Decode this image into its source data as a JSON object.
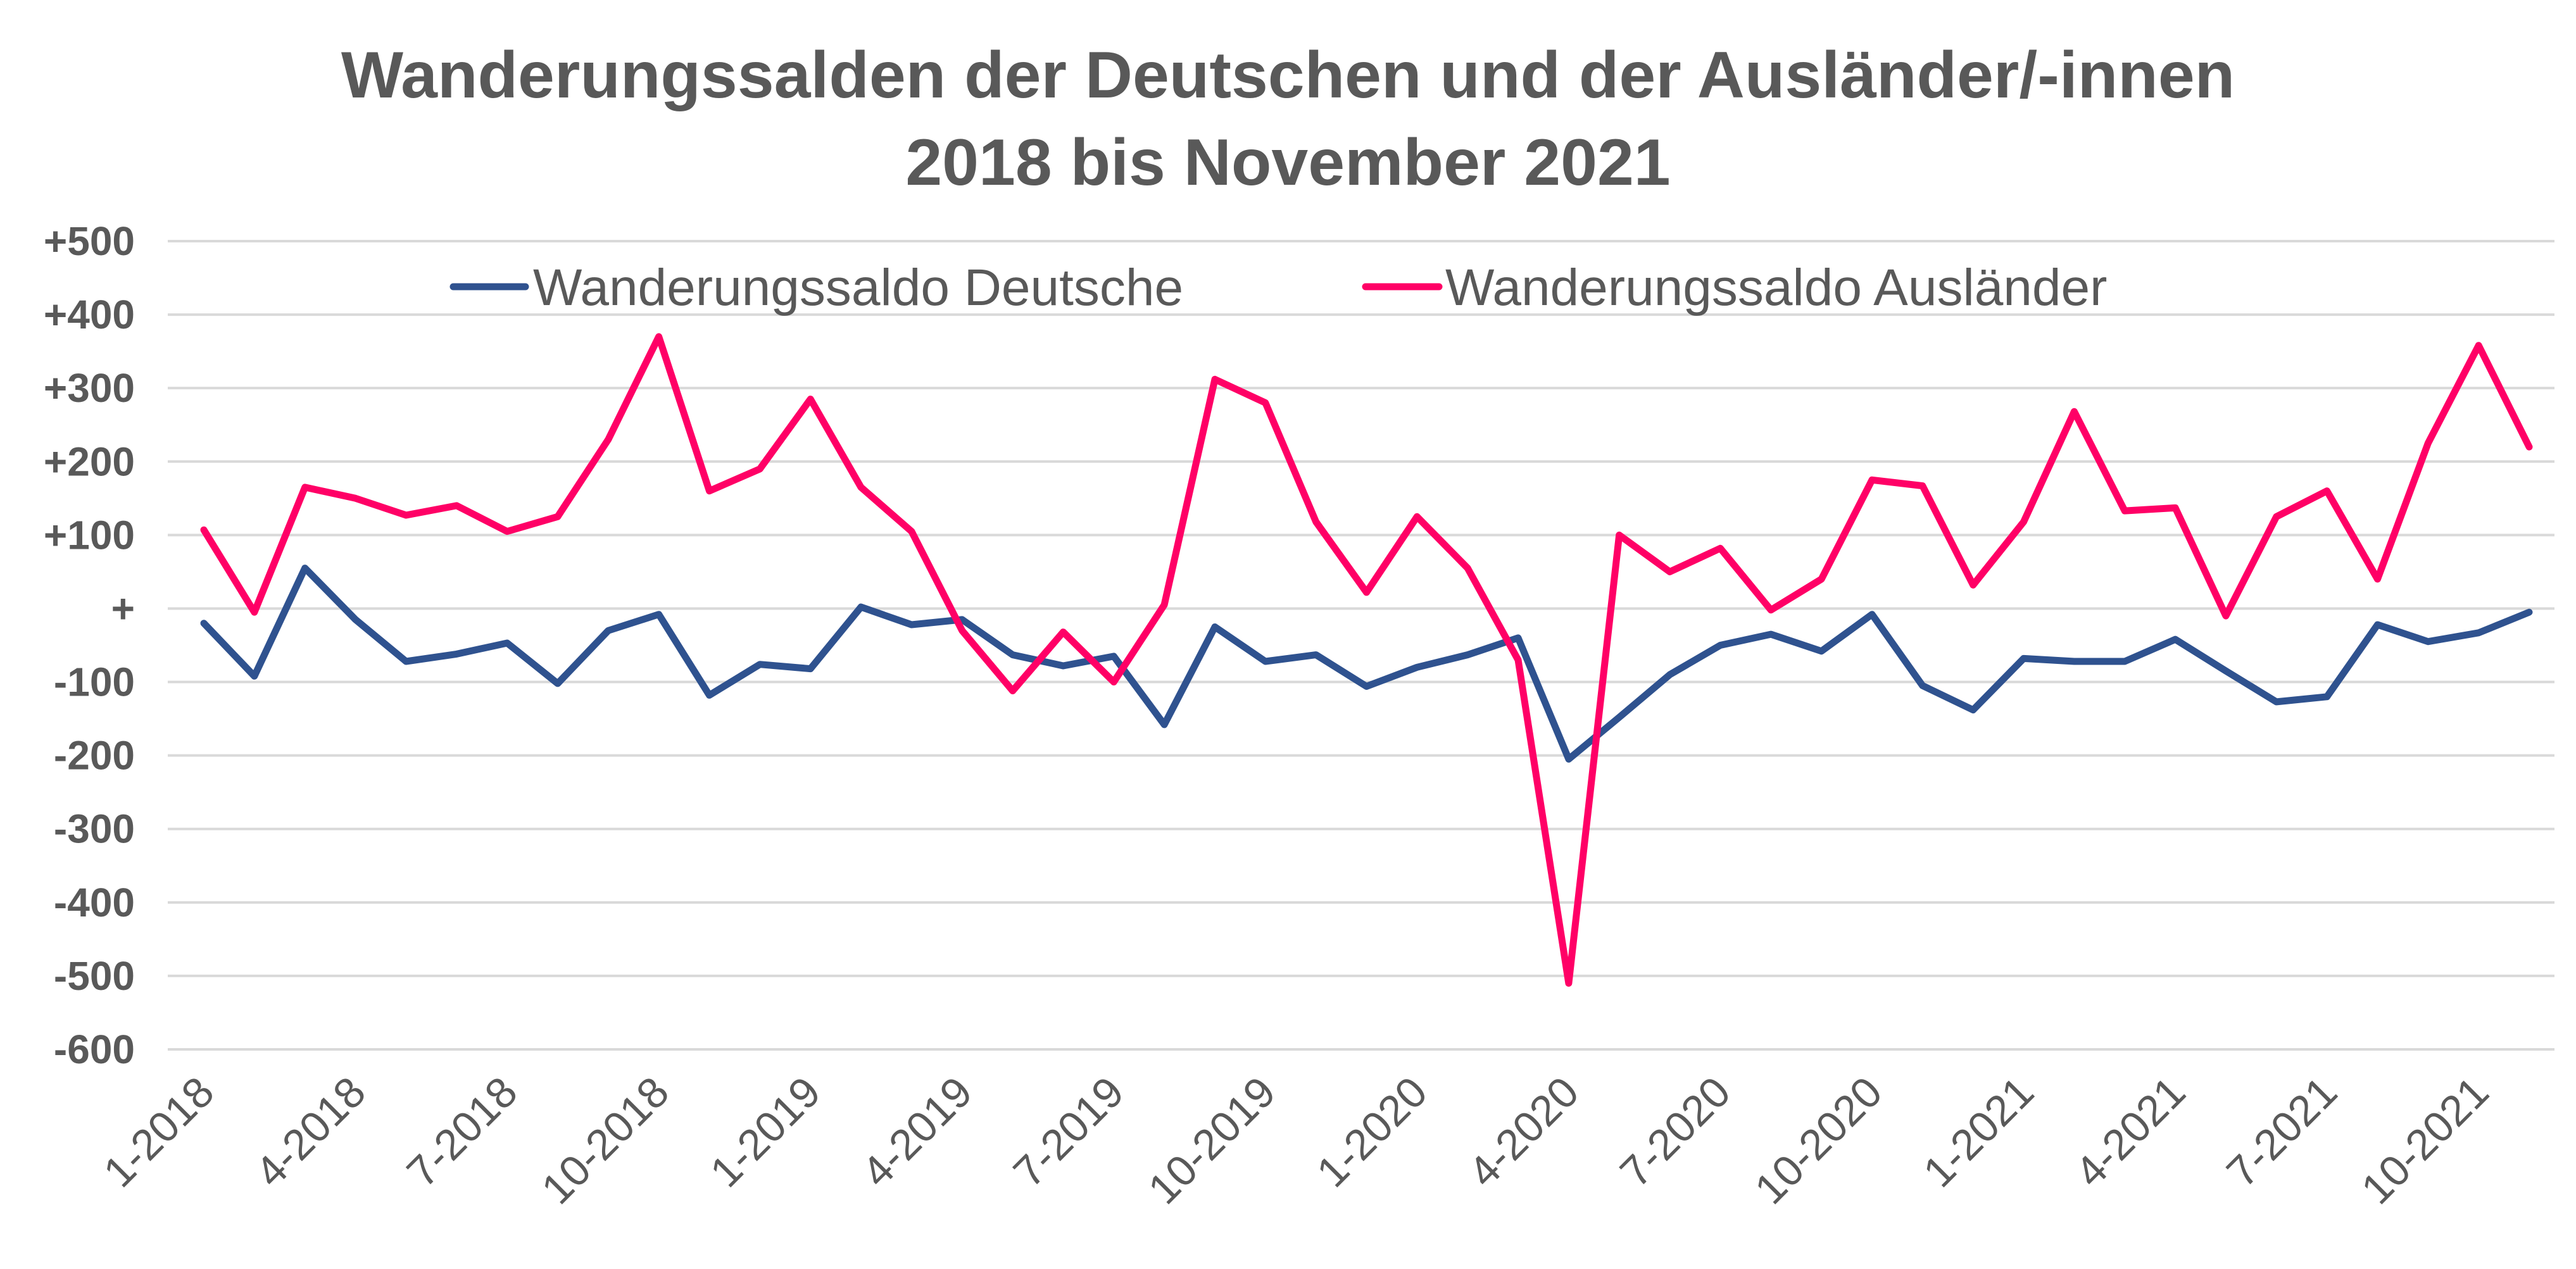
{
  "chart_data": {
    "type": "line",
    "title": "Wanderungssalden der Deutschen und der Ausländer/-innen",
    "subtitle": "2018 bis November 2021",
    "xlabel": "",
    "ylabel": "",
    "ylim": [
      -600,
      500
    ],
    "yticks": [
      500,
      400,
      300,
      200,
      100,
      0,
      -100,
      -200,
      -300,
      -400,
      -500,
      -600
    ],
    "ytick_labels": [
      "+500",
      "+400",
      "+300",
      "+200",
      "+100",
      "+",
      "-100",
      "-200",
      "-300",
      "-400",
      "-500",
      "-600"
    ],
    "grid": true,
    "legend_position": "top",
    "x": [
      "1-2018",
      "2-2018",
      "3-2018",
      "4-2018",
      "5-2018",
      "6-2018",
      "7-2018",
      "8-2018",
      "9-2018",
      "10-2018",
      "11-2018",
      "12-2018",
      "1-2019",
      "2-2019",
      "3-2019",
      "4-2019",
      "5-2019",
      "6-2019",
      "7-2019",
      "8-2019",
      "9-2019",
      "10-2019",
      "11-2019",
      "12-2019",
      "1-2020",
      "2-2020",
      "3-2020",
      "4-2020",
      "5-2020",
      "6-2020",
      "7-2020",
      "8-2020",
      "9-2020",
      "10-2020",
      "11-2020",
      "12-2020",
      "1-2021",
      "2-2021",
      "3-2021",
      "4-2021",
      "5-2021",
      "6-2021",
      "7-2021",
      "8-2021",
      "9-2021",
      "10-2021",
      "11-2021"
    ],
    "x_tick_labels": [
      "1-2018",
      "4-2018",
      "7-2018",
      "10-2018",
      "1-2019",
      "4-2019",
      "7-2019",
      "10-2019",
      "1-2020",
      "4-2020",
      "7-2020",
      "10-2020",
      "1-2021",
      "4-2021",
      "7-2021",
      "10-2021"
    ],
    "series": [
      {
        "name": "Wanderungssaldo Deutsche",
        "color": "#2F528F",
        "values": [
          -20,
          -92,
          55,
          -15,
          -72,
          -62,
          -47,
          -102,
          -30,
          -8,
          -118,
          -76,
          -82,
          2,
          -22,
          -15,
          -63,
          -78,
          -65,
          -158,
          -25,
          -72,
          -63,
          -106,
          -80,
          -63,
          -40,
          -205,
          -148,
          -90,
          -50,
          -35,
          -58,
          -8,
          -105,
          -138,
          -68,
          -72,
          -72,
          -42,
          -85,
          -127,
          -120,
          -22,
          -45,
          -33,
          -5
        ]
      },
      {
        "name": "Wanderungssaldo Ausländer",
        "color": "#FF0066",
        "values": [
          107,
          -5,
          165,
          150,
          127,
          140,
          105,
          125,
          230,
          370,
          160,
          190,
          285,
          165,
          105,
          -30,
          -112,
          -32,
          -100,
          5,
          312,
          280,
          118,
          22,
          125,
          55,
          -70,
          -510,
          100,
          50,
          82,
          -2,
          40,
          175,
          167,
          32,
          118,
          268,
          133,
          137,
          -10,
          125,
          160,
          40,
          225,
          358,
          220
        ]
      }
    ]
  }
}
